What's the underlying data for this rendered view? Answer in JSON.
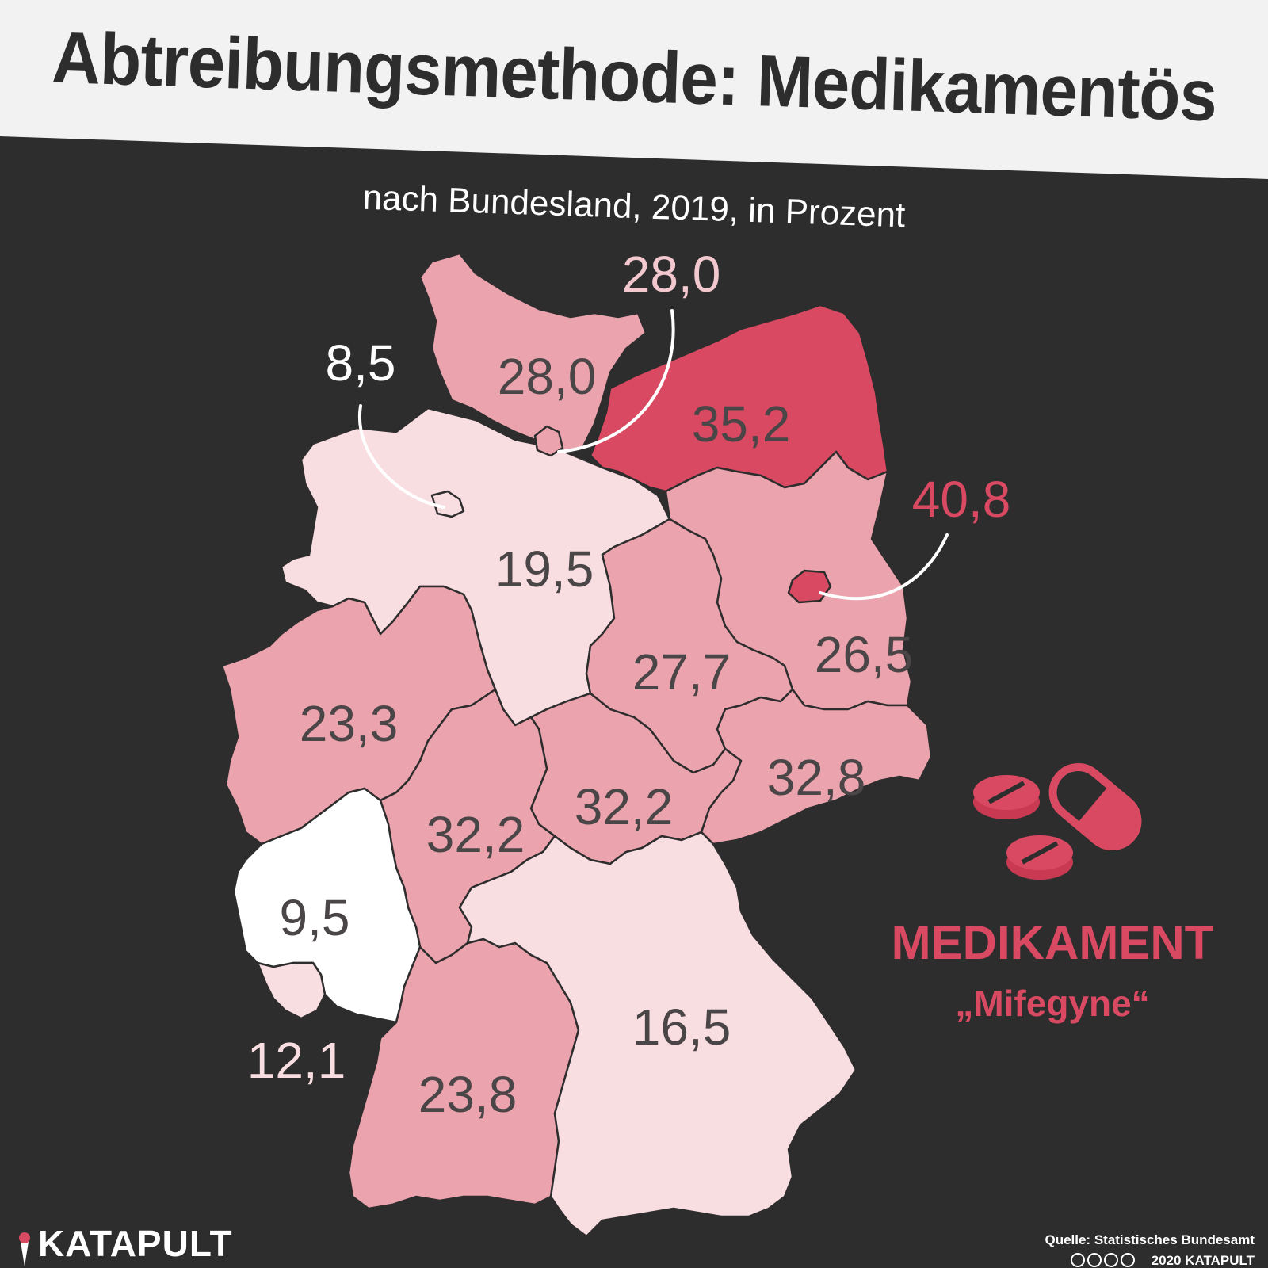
{
  "title": "Abtreibungsmethode: Medikamentös",
  "subtitle": "nach Bundesland, 2019, in Prozent",
  "colors": {
    "background": "#2e2d2e",
    "banner": "#f2f2f2",
    "text_dark": "#4a4546",
    "accent": "#d94a62",
    "scale": [
      "#ffffff",
      "#f8dde1",
      "#eba3ad",
      "#d94a62"
    ]
  },
  "legend": {
    "icon": "pills-and-capsule-icon",
    "title": "MEDIKAMENT",
    "subtitle": "„Mifegyne“"
  },
  "footer": {
    "brand": "KATAPULT",
    "source": "Quelle: Statistisches Bundesamt",
    "license": "2020 KATAPULT",
    "license_icons": [
      "cc-icon",
      "by-icon",
      "nc-icon",
      "nd-icon"
    ]
  },
  "regions": [
    {
      "key": "hamburg",
      "value": "28,0"
    },
    {
      "key": "schleswig_holstein",
      "value": "28,0"
    },
    {
      "key": "bremen",
      "value": "8,5"
    },
    {
      "key": "mecklenburg_vorpommern",
      "value": "35,2"
    },
    {
      "key": "berlin",
      "value": "40,8"
    },
    {
      "key": "niedersachsen",
      "value": "19,5"
    },
    {
      "key": "sachsen_anhalt",
      "value": "27,7"
    },
    {
      "key": "brandenburg",
      "value": "26,5"
    },
    {
      "key": "nordrhein_westfalen",
      "value": "23,3"
    },
    {
      "key": "sachsen",
      "value": "32,8"
    },
    {
      "key": "hessen",
      "value": "32,2"
    },
    {
      "key": "thueringen",
      "value": "32,2"
    },
    {
      "key": "rheinland_pfalz",
      "value": "9,5"
    },
    {
      "key": "saarland",
      "value": "12,1"
    },
    {
      "key": "bayern",
      "value": "16,5"
    },
    {
      "key": "baden_wuerttemberg",
      "value": "23,8"
    }
  ]
}
